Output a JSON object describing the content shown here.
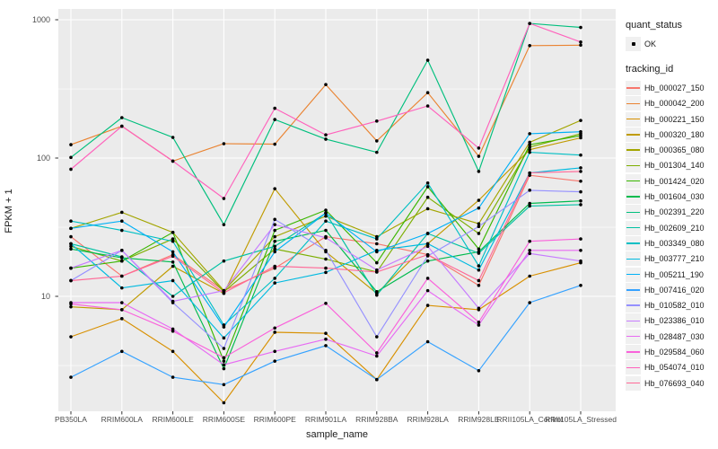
{
  "chart_data": {
    "type": "line",
    "title": "",
    "xlabel": "sample_name",
    "ylabel": "FPKM + 1",
    "y_scale": "log10",
    "y_ticks": [
      1000,
      100,
      10
    ],
    "y_minor_ticks": [
      316,
      31.6,
      3.16
    ],
    "ylim": [
      1.5,
      1200
    ],
    "grid": "white major+minor gridlines on gray panel",
    "legend_position": "right",
    "marker": "small black point on every value",
    "categories": [
      "PB350LA",
      "RRIM600LA",
      "RRIM600LE",
      "RRIM600SE",
      "RRIM600PE",
      "RRIM901LA",
      "RRIM928BA",
      "RRIM928LA",
      "RRIM928LE",
      "RRII105LA_Control",
      "RRII105LA_Stressed"
    ],
    "series": [
      {
        "name": "Hb_000027_150",
        "color": "#F8766D",
        "values": [
          27,
          14,
          20,
          11,
          16,
          27,
          24,
          20,
          12,
          75,
          68
        ]
      },
      {
        "name": "Hb_000042_200",
        "color": "#EA8331",
        "values": [
          125,
          170,
          95,
          127,
          126,
          340,
          133,
          297,
          103,
          650,
          655
        ]
      },
      {
        "name": "Hb_000221_150",
        "color": "#D89000",
        "values": [
          5.1,
          6.9,
          4,
          1.7,
          5.5,
          5.4,
          2.5,
          8.6,
          8,
          14,
          17.5
        ]
      },
      {
        "name": "Hb_000320_180",
        "color": "#C09B00",
        "values": [
          8.4,
          8,
          16.5,
          10.5,
          60,
          21,
          10.5,
          24,
          49.5,
          115,
          140
        ]
      },
      {
        "name": "Hb_000365_080",
        "color": "#A3A500",
        "values": [
          31,
          40.5,
          29,
          11,
          27,
          38,
          27,
          43,
          33.5,
          130,
          187
        ]
      },
      {
        "name": "Hb_001304_140",
        "color": "#7CAE00",
        "values": [
          23,
          18,
          26,
          10.8,
          22,
          18.6,
          15,
          52,
          28.5,
          120,
          150
        ]
      },
      {
        "name": "Hb_001424_020",
        "color": "#39B600",
        "values": [
          16,
          18,
          29,
          3.4,
          30,
          42,
          17.5,
          62,
          22,
          125,
          145
        ]
      },
      {
        "name": "Hb_001604_030",
        "color": "#00BB4E",
        "values": [
          22,
          19,
          17.7,
          3,
          25,
          30,
          10.8,
          18,
          21,
          47,
          49
        ]
      },
      {
        "name": "Hb_002391_220",
        "color": "#00BF7D",
        "values": [
          101,
          196,
          141,
          33,
          190,
          137,
          110,
          510,
          80,
          940,
          880
        ]
      },
      {
        "name": "Hb_002609_210",
        "color": "#00C1A3",
        "values": [
          24,
          19.3,
          10,
          18,
          23,
          40,
          10.2,
          28.5,
          20.5,
          45,
          46
        ]
      },
      {
        "name": "Hb_003349_080",
        "color": "#00BFC4",
        "values": [
          35,
          30,
          25,
          6.2,
          13.5,
          35,
          26,
          66,
          16.6,
          110,
          105
        ]
      },
      {
        "name": "Hb_003777_210",
        "color": "#00BAE0",
        "values": [
          24,
          11.5,
          13,
          5,
          12.5,
          14.9,
          21.5,
          24,
          15.5,
          78,
          85
        ]
      },
      {
        "name": "Hb_005211_190",
        "color": "#00B0F6",
        "values": [
          31,
          35,
          21,
          6,
          21,
          40,
          21,
          28.5,
          43.5,
          150,
          155
        ]
      },
      {
        "name": "Hb_007416_020",
        "color": "#35A2FF",
        "values": [
          2.6,
          4,
          2.6,
          2.3,
          3.4,
          4.4,
          2.5,
          4.7,
          2.9,
          9,
          12
        ]
      },
      {
        "name": "Hb_010582_010",
        "color": "#9590FF",
        "values": [
          13,
          21.5,
          9,
          4.2,
          36,
          21.5,
          5.1,
          19.6,
          32,
          58.5,
          57
        ]
      },
      {
        "name": "Hb_023386_010",
        "color": "#C77CFF",
        "values": [
          16,
          21.5,
          9.2,
          11,
          33,
          26.5,
          15.5,
          23,
          8.2,
          20.4,
          18
        ]
      },
      {
        "name": "Hb_028487_030",
        "color": "#E76BF3",
        "values": [
          9,
          9,
          5.8,
          3.2,
          4,
          4.9,
          3.7,
          11,
          6.2,
          21.5,
          21.5
        ]
      },
      {
        "name": "Hb_029584_060",
        "color": "#FA62DB",
        "values": [
          8.8,
          8,
          5.6,
          3.6,
          5.9,
          8.9,
          3.9,
          13.5,
          6.5,
          25,
          26
        ]
      },
      {
        "name": "Hb_054074_010",
        "color": "#FF62BC",
        "values": [
          83,
          170,
          95,
          51,
          229,
          147,
          185,
          238,
          118,
          940,
          690
        ]
      },
      {
        "name": "Hb_076693_040",
        "color": "#FF6A98",
        "values": [
          13,
          14,
          19.5,
          10.6,
          16.5,
          16,
          15,
          20,
          13,
          78,
          80
        ]
      }
    ]
  },
  "legend": {
    "quant_title": "quant_status",
    "quant_label": "OK",
    "tracking_title": "tracking_id"
  },
  "colors": {
    "panel_bg": "#EBEBEB",
    "grid": "#FFFFFF",
    "tick_text": "#4d4d4d",
    "point": "#000000",
    "legend_key_bg": "#F0F0F0"
  }
}
